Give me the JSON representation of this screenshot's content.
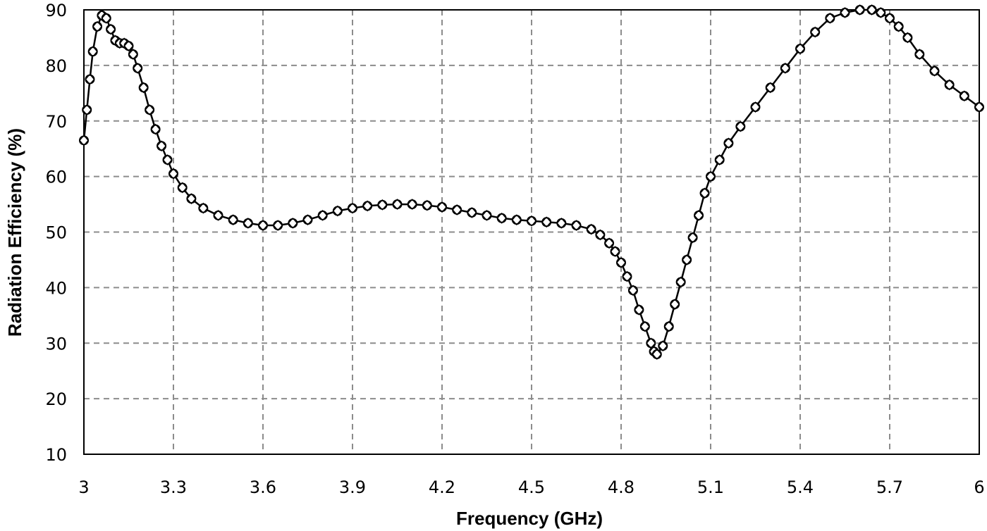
{
  "chart_data": {
    "type": "line",
    "title": "",
    "xlabel": "Frequency (GHz)",
    "ylabel": "Radiation Efficiency  (%)",
    "xlim": [
      3,
      6
    ],
    "ylim": [
      10,
      90
    ],
    "xticks": [
      3,
      3.3,
      3.6,
      3.9,
      4.2,
      4.5,
      4.8,
      5.1,
      5.4,
      5.7,
      6
    ],
    "xtick_labels": [
      "3",
      "3.3",
      "3.6",
      "3.9",
      "4.2",
      "4.5",
      "4.8",
      "5.1",
      "5.4",
      "5.7",
      "6"
    ],
    "yticks": [
      10,
      20,
      30,
      40,
      50,
      60,
      70,
      80,
      90
    ],
    "ytick_labels": [
      "10",
      "20",
      "30",
      "40",
      "50",
      "60",
      "70",
      "80",
      "90"
    ],
    "grid": true,
    "legend": null,
    "series": [
      {
        "name": "Radiation Efficiency",
        "marker": "diamond-circle",
        "color": "#000000",
        "x": [
          3.0,
          3.01,
          3.02,
          3.03,
          3.045,
          3.06,
          3.075,
          3.09,
          3.105,
          3.12,
          3.135,
          3.15,
          3.165,
          3.18,
          3.2,
          3.22,
          3.24,
          3.26,
          3.28,
          3.3,
          3.33,
          3.36,
          3.4,
          3.45,
          3.5,
          3.55,
          3.6,
          3.65,
          3.7,
          3.75,
          3.8,
          3.85,
          3.9,
          3.95,
          4.0,
          4.05,
          4.1,
          4.15,
          4.2,
          4.25,
          4.3,
          4.35,
          4.4,
          4.45,
          4.5,
          4.55,
          4.6,
          4.65,
          4.7,
          4.73,
          4.76,
          4.78,
          4.8,
          4.82,
          4.84,
          4.86,
          4.88,
          4.9,
          4.91,
          4.92,
          4.94,
          4.96,
          4.98,
          5.0,
          5.02,
          5.04,
          5.06,
          5.08,
          5.1,
          5.13,
          5.16,
          5.2,
          5.25,
          5.3,
          5.35,
          5.4,
          5.45,
          5.5,
          5.55,
          5.6,
          5.64,
          5.67,
          5.7,
          5.73,
          5.76,
          5.8,
          5.85,
          5.9,
          5.95,
          6.0
        ],
        "y": [
          66.5,
          72,
          77.5,
          82.5,
          87,
          89,
          88.5,
          86.5,
          84.5,
          84,
          84,
          83.5,
          82,
          79.5,
          76,
          72,
          68.5,
          65.5,
          63,
          60.5,
          58,
          56,
          54.3,
          53,
          52.2,
          51.6,
          51.2,
          51.2,
          51.6,
          52.2,
          53,
          53.8,
          54.3,
          54.7,
          54.9,
          55,
          55,
          54.8,
          54.5,
          54,
          53.5,
          53,
          52.5,
          52.2,
          52,
          51.8,
          51.6,
          51.2,
          50.5,
          49.5,
          48,
          46.5,
          44.5,
          42,
          39.5,
          36,
          33,
          30,
          28.5,
          28,
          29.5,
          33,
          37,
          41,
          45,
          49,
          53,
          57,
          60,
          63,
          66,
          69,
          72.5,
          76,
          79.5,
          83,
          86,
          88.5,
          89.5,
          90,
          90,
          89.5,
          88.5,
          87,
          85,
          82,
          79,
          76.5,
          74.5,
          72.5
        ]
      }
    ]
  }
}
